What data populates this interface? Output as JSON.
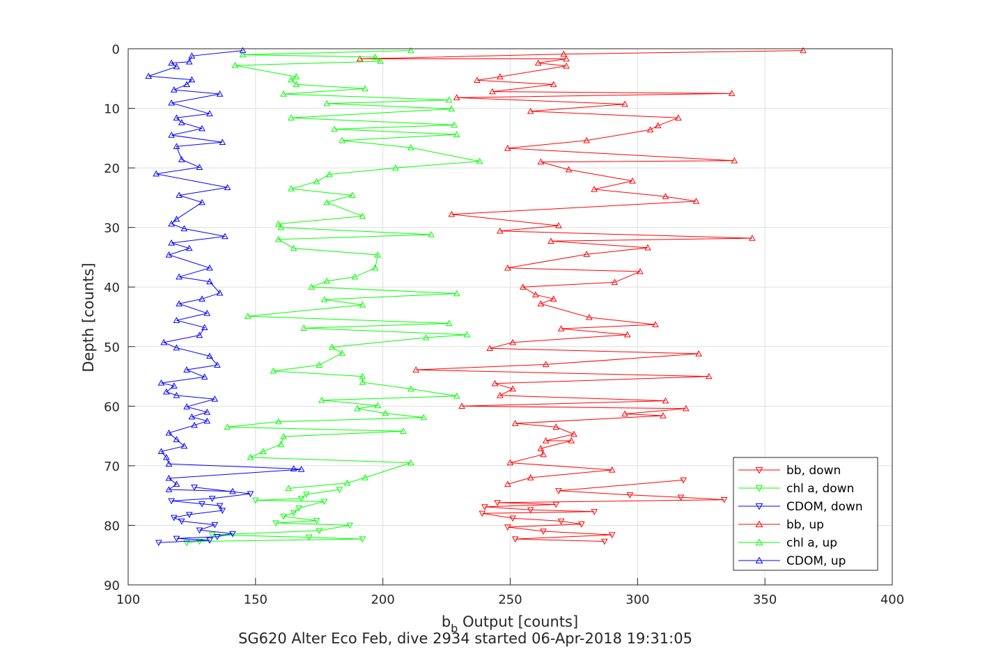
{
  "chart_data": {
    "type": "line",
    "title": "",
    "caption": "SG620 Alter Eco Feb, dive 2934 started 06-Apr-2018 19:31:05",
    "xlabel_main": "b",
    "xlabel_sub": "b",
    "xlabel_rest": " Output [counts]",
    "ylabel": "Depth [counts]",
    "xlim": [
      100,
      400
    ],
    "ylim": [
      0,
      90
    ],
    "y_reversed": true,
    "grid": true,
    "legend_position": "bottom-right",
    "xticks": [
      "100",
      "150",
      "200",
      "250",
      "300",
      "350",
      "400"
    ],
    "yticks": [
      "0",
      "10",
      "20",
      "30",
      "40",
      "50",
      "60",
      "70",
      "80",
      "90"
    ],
    "colors": {
      "red": "#ff0000",
      "green": "#00ff00",
      "blue": "#0000ff",
      "axis": "#262626"
    },
    "series": [
      {
        "name": "bb, down",
        "color": "#ff0000",
        "marker": "triangle-down",
        "x": [
          318,
          269,
          297,
          317,
          334,
          245,
          268,
          240,
          258,
          283,
          239,
          251,
          270,
          278,
          249,
          263,
          290,
          252,
          287
        ],
        "y": [
          72.4,
          74.2,
          74.9,
          75.3,
          75.7,
          76.2,
          76.5,
          76.9,
          77.4,
          77.7,
          78.0,
          78.8,
          79.3,
          79.8,
          80.3,
          81.0,
          81.6,
          82.3,
          82.7
        ]
      },
      {
        "name": "chl a, down",
        "color": "#00ff00",
        "marker": "triangle-down",
        "x": [
          183,
          170,
          168,
          150,
          177,
          167,
          165,
          161,
          174,
          158,
          187,
          175,
          133,
          171,
          192,
          128,
          123
        ],
        "y": [
          74.0,
          74.8,
          75.5,
          75.8,
          76.0,
          77.1,
          77.9,
          78.5,
          79.2,
          79.6,
          80.0,
          80.9,
          81.6,
          82.0,
          82.3,
          82.7,
          82.9
        ]
      },
      {
        "name": "CDOM, down",
        "color": "#0000ff",
        "marker": "triangle-down",
        "x": [
          126,
          148,
          133,
          117,
          129,
          136,
          137,
          124,
          118,
          121,
          134,
          128,
          141,
          135,
          119,
          132,
          112
        ],
        "y": [
          73.6,
          74.7,
          75.5,
          75.9,
          76.4,
          76.7,
          77.5,
          78.2,
          78.7,
          79.3,
          79.9,
          80.8,
          81.4,
          81.9,
          82.2,
          82.5,
          82.9
        ]
      },
      {
        "name": "bb, up",
        "color": "#ff0000",
        "marker": "triangle-up",
        "x": [
          365,
          271,
          191,
          272,
          261,
          272,
          246,
          237,
          267,
          243,
          337,
          229,
          295,
          258,
          316,
          308,
          305,
          280,
          249,
          338,
          262,
          273,
          298,
          283,
          311,
          323,
          227,
          269,
          246,
          345,
          266,
          304,
          280,
          249,
          301,
          291,
          255,
          260,
          267,
          262,
          281,
          307,
          270,
          296,
          251,
          242,
          324,
          264,
          213,
          328,
          244,
          251,
          246,
          311,
          231,
          319,
          295,
          310,
          252,
          268,
          275,
          264,
          274,
          262,
          263,
          250,
          290,
          258,
          249
        ],
        "y": [
          0.3,
          0.9,
          1.7,
          1.7,
          2.4,
          2.9,
          4.7,
          5.3,
          6.0,
          7.2,
          7.5,
          8.2,
          9.3,
          10.5,
          11.6,
          12.9,
          13.6,
          15.4,
          16.7,
          18.8,
          19.0,
          20.3,
          22.2,
          23.6,
          24.8,
          25.6,
          27.8,
          29.7,
          30.6,
          31.8,
          32.3,
          33.4,
          34.5,
          36.8,
          37.4,
          39.2,
          40.0,
          41.3,
          42.0,
          42.8,
          45.1,
          46.3,
          47.0,
          48.0,
          49.3,
          50.3,
          51.2,
          53.0,
          53.9,
          55.0,
          56.2,
          57.1,
          58.2,
          59.1,
          60.0,
          60.4,
          61.3,
          61.6,
          62.9,
          63.5,
          64.7,
          65.8,
          65.8,
          67.1,
          68.1,
          69.5,
          70.7,
          72.0,
          73.1
        ]
      },
      {
        "name": "chl a, up",
        "color": "#00ff00",
        "marker": "triangle-up",
        "x": [
          211,
          145,
          197,
          199,
          142,
          166,
          164,
          166,
          193,
          161,
          226,
          178,
          227,
          164,
          228,
          181,
          229,
          184,
          211,
          238,
          205,
          179,
          174,
          164,
          188,
          178,
          192,
          159,
          160,
          219,
          159,
          165,
          198,
          197,
          189,
          178,
          172,
          229,
          177,
          192,
          147,
          226,
          169,
          233,
          217,
          180,
          184,
          175,
          157,
          192,
          192,
          211,
          229,
          176,
          198,
          190,
          201,
          216,
          159,
          139,
          208,
          161,
          160,
          153,
          148,
          211,
          193,
          186,
          163
        ],
        "y": [
          0.3,
          1.0,
          1.4,
          2.1,
          2.8,
          4.7,
          5.2,
          6.0,
          6.7,
          7.6,
          8.6,
          9.2,
          10.1,
          11.6,
          12.8,
          13.5,
          14.4,
          15.4,
          16.6,
          18.9,
          20.0,
          21.1,
          22.3,
          23.5,
          24.6,
          25.8,
          28.1,
          29.4,
          30.0,
          31.2,
          32.0,
          33.5,
          34.6,
          36.8,
          38.3,
          39.0,
          40.0,
          41.1,
          42.1,
          43.0,
          44.9,
          46.1,
          46.9,
          48.0,
          48.5,
          50.1,
          51.1,
          53.1,
          54.1,
          55.0,
          56.0,
          57.1,
          58.3,
          59.0,
          59.9,
          60.4,
          61.2,
          61.9,
          62.6,
          63.5,
          64.2,
          65.1,
          66.4,
          67.6,
          68.6,
          69.5,
          72.0,
          72.9,
          73.8
        ]
      },
      {
        "name": "CDOM, up",
        "color": "#0000ff",
        "marker": "triangle-up",
        "x": [
          145,
          125,
          124,
          117,
          119,
          108,
          125,
          123,
          118,
          136,
          117,
          132,
          119,
          121,
          129,
          117,
          137,
          119,
          121,
          128,
          111,
          139,
          120,
          129,
          119,
          117,
          122,
          138,
          117,
          124,
          116,
          132,
          120,
          132,
          136,
          129,
          120,
          131,
          119,
          130,
          128,
          114,
          119,
          132,
          135,
          123,
          130,
          113,
          118,
          115,
          119,
          134,
          123,
          131,
          125,
          131,
          126,
          116,
          119,
          122,
          113,
          115,
          116,
          165,
          168,
          116,
          119,
          116,
          141
        ],
        "y": [
          0.3,
          1.2,
          2.2,
          2.4,
          3.0,
          4.6,
          5.2,
          6.0,
          6.9,
          7.6,
          9.1,
          10.9,
          11.6,
          12.4,
          13.4,
          14.5,
          15.7,
          16.4,
          18.6,
          19.9,
          21.0,
          23.3,
          24.6,
          25.8,
          28.6,
          29.4,
          30.2,
          31.5,
          32.6,
          33.5,
          34.6,
          36.8,
          38.3,
          39.1,
          41.0,
          42.0,
          42.8,
          44.4,
          45.6,
          46.8,
          48.1,
          49.3,
          50.2,
          51.6,
          53.1,
          53.9,
          55.1,
          56.1,
          56.6,
          57.6,
          58.2,
          58.8,
          60.1,
          61.0,
          61.8,
          62.5,
          63.2,
          64.5,
          65.6,
          66.7,
          67.6,
          68.6,
          69.7,
          70.5,
          70.6,
          72.1,
          73.1,
          74.0,
          74.3
        ]
      }
    ]
  }
}
